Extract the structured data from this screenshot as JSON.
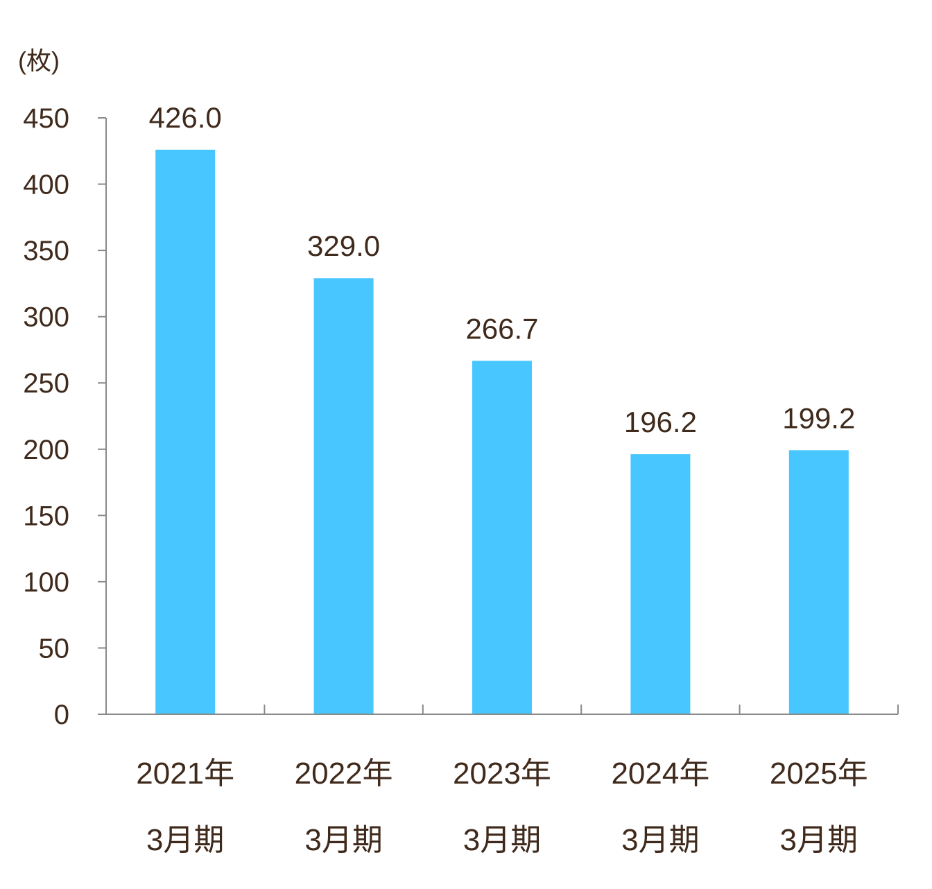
{
  "chart_data": {
    "type": "bar",
    "unit_label": "(枚)",
    "categories": [
      [
        "2021年",
        "3月期"
      ],
      [
        "2022年",
        "3月期"
      ],
      [
        "2023年",
        "3月期"
      ],
      [
        "2024年",
        "3月期"
      ],
      [
        "2025年",
        "3月期"
      ]
    ],
    "values": [
      426.0,
      329.0,
      266.7,
      196.2,
      199.2
    ],
    "value_labels": [
      "426.0",
      "329.0",
      "266.7",
      "196.2",
      "199.2"
    ],
    "ylim": [
      0,
      450
    ],
    "yticks": [
      0,
      50,
      100,
      150,
      200,
      250,
      300,
      350,
      400,
      450
    ],
    "grid": false,
    "legend": "none",
    "colors": {
      "bar": "#47c6ff",
      "axis": "#898989",
      "text": "#3f2a1c"
    }
  }
}
